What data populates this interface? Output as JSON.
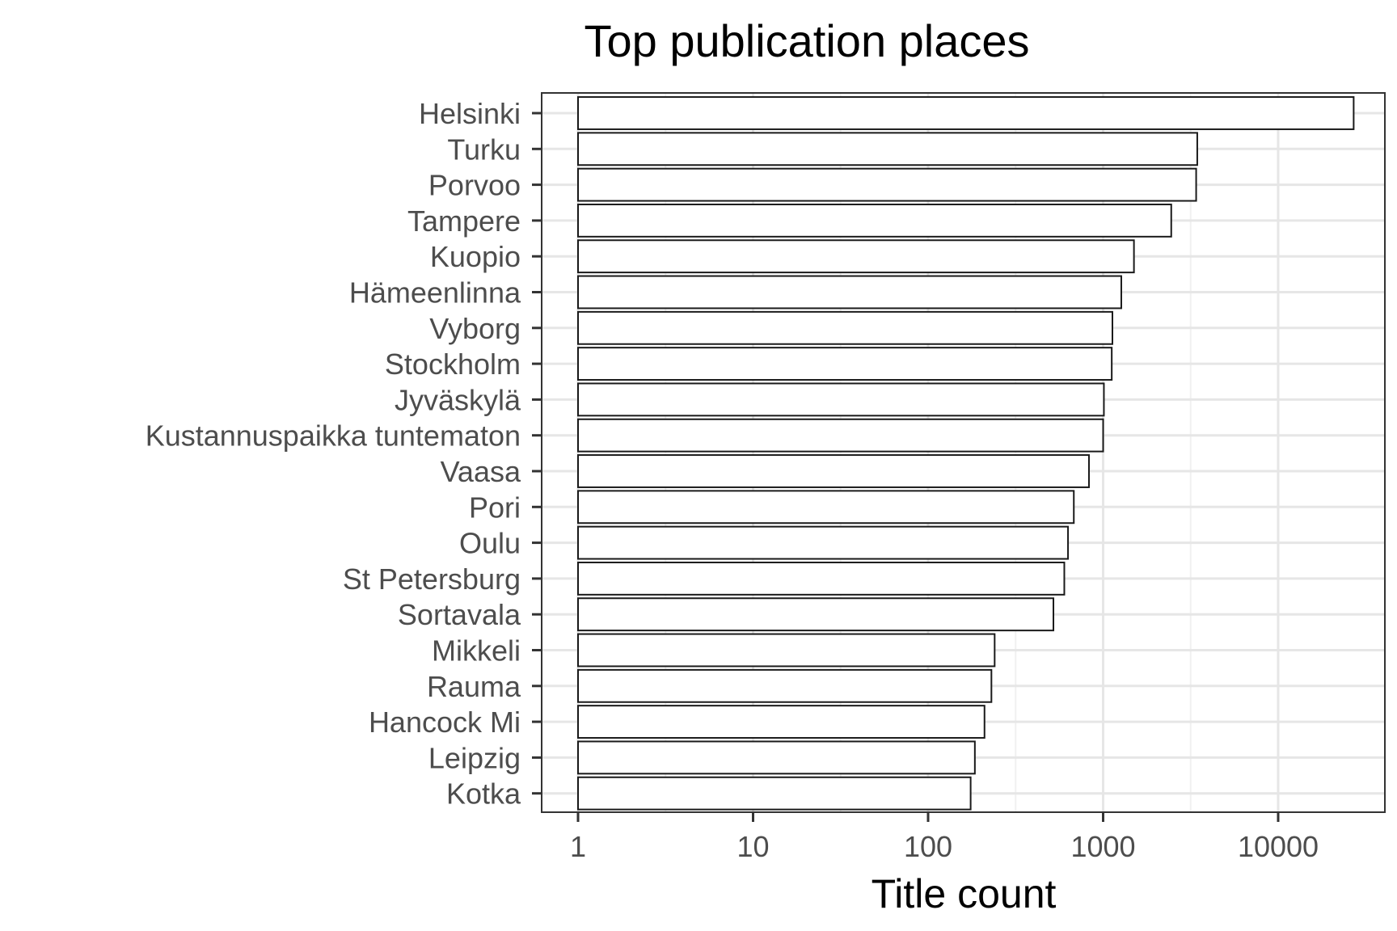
{
  "chart_data": {
    "type": "bar",
    "orientation": "horizontal",
    "title": "Top publication places",
    "xlabel": "Title count",
    "ylabel": "",
    "x_scale": "log10",
    "xlim": [
      0.81,
      40000
    ],
    "x_ticks": [
      "1",
      "10",
      "100",
      "1000",
      "10000"
    ],
    "grid": true,
    "legend": "none",
    "bar_fill": "#ffffff",
    "bar_stroke": "#1a1a1a",
    "categories": [
      "Helsinki",
      "Turku",
      "Porvoo",
      "Tampere",
      "Kuopio",
      "Hämeenlinna",
      "Vyborg",
      "Stockholm",
      "Jyväskylä",
      "Kustannuspaikka tuntematon",
      "Vaasa",
      "Pori",
      "Oulu",
      "St Petersburg",
      "Sortavala",
      "Mikkeli",
      "Rauma",
      "Hancock Mi",
      "Leipzig",
      "Kotka"
    ],
    "values": [
      27000,
      3450,
      3400,
      2450,
      1500,
      1270,
      1130,
      1120,
      1010,
      1000,
      830,
      680,
      630,
      600,
      520,
      240,
      230,
      210,
      185,
      175
    ]
  }
}
